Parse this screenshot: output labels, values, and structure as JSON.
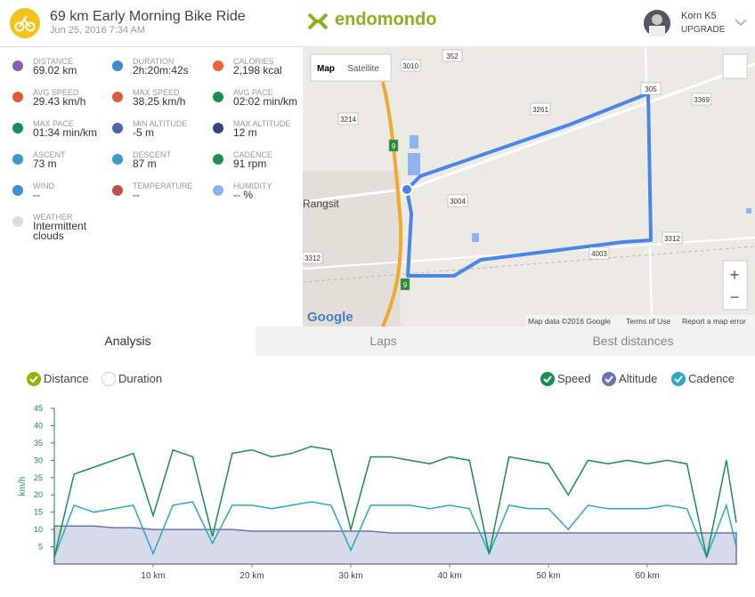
{
  "header": {
    "title": "69 km Early Morning Bike Ride",
    "date": "Jun 25, 2016 7:34 AM",
    "logo": "endomondo",
    "user": "Korn K5",
    "upgrade": "UPGRADE"
  },
  "stats": [
    {
      "label": "DISTANCE",
      "value": "69.02 km"
    },
    {
      "label": "DURATION",
      "value": "2h:20m:42s"
    },
    {
      "label": "CALORIES",
      "value": "2,198 kcal"
    },
    {
      "label": "AVG SPEED",
      "value": "29.43 km/h"
    },
    {
      "label": "MAX SPEED",
      "value": "38.25 km/h"
    },
    {
      "label": "AVG PACE",
      "value": "02:02 min/km"
    },
    {
      "label": "MAX PACE",
      "value": "01:34 min/km"
    },
    {
      "label": "MIN ALTITUDE",
      "value": "-5 m"
    },
    {
      "label": "MAX ALTITUDE",
      "value": "12 m"
    },
    {
      "label": "ASCENT",
      "value": "73 m"
    },
    {
      "label": "DESCENT",
      "value": "87 m"
    },
    {
      "label": "CADENCE",
      "value": "91 rpm"
    },
    {
      "label": "WIND",
      "value": "--"
    },
    {
      "label": "TEMPERATURE",
      "value": "--"
    },
    {
      "label": "HUMIDITY",
      "value": "-- %"
    },
    {
      "label": "WEATHER",
      "value": "Intermittent clouds"
    }
  ],
  "map": {
    "buttons": [
      "Map",
      "Satellite"
    ],
    "place": "Rangsit",
    "brand": "Google",
    "footer": [
      "Map data ©2016 Google",
      "Terms of Use",
      "Report a map error"
    ],
    "zoom": [
      "+",
      "−"
    ],
    "labels": [
      "3010",
      "352",
      "3214",
      "3261",
      "305",
      "3369",
      "3004",
      "3312",
      "4003",
      "3312",
      "9",
      "9"
    ]
  },
  "tabs": [
    "Analysis",
    "Laps",
    "Best distances"
  ],
  "axis_options": [
    "Distance",
    "Duration"
  ],
  "chart_data": {
    "type": "line",
    "y_label": "km/h",
    "x": [
      0,
      2,
      4,
      6,
      8,
      10,
      12,
      14,
      16,
      18,
      20,
      22,
      24,
      26,
      28,
      30,
      32,
      34,
      36,
      38,
      40,
      42,
      44,
      46,
      48,
      50,
      52,
      54,
      56,
      58,
      60,
      62,
      64,
      66,
      68,
      69
    ],
    "series": [
      {
        "name": "Speed",
        "color": "#1a8f4f",
        "values": [
          2,
          26,
          28,
          30,
          32,
          14,
          33,
          31,
          8,
          32,
          33,
          31,
          32,
          34,
          33,
          10,
          31,
          31,
          30,
          29,
          31,
          30,
          3,
          31,
          30,
          29,
          20,
          30,
          29,
          30,
          29,
          30,
          29,
          2,
          30,
          12
        ]
      },
      {
        "name": "Altitude",
        "color": "#6b72b5",
        "values": [
          11,
          11,
          11,
          10.5,
          10.5,
          10,
          10,
          10,
          10,
          10,
          9.5,
          9.5,
          9.5,
          9.5,
          9.5,
          9.5,
          9.5,
          9,
          9,
          9,
          9,
          9,
          9,
          9,
          9,
          9,
          9,
          9,
          9,
          9,
          9,
          9,
          9,
          9,
          9,
          9
        ]
      },
      {
        "name": "Cadence",
        "color": "#2aa9c8",
        "values": [
          2,
          17,
          15,
          16,
          17,
          3,
          17,
          18,
          6,
          17,
          17,
          16,
          17,
          18,
          17,
          4,
          17,
          17,
          17,
          16,
          17,
          16,
          3,
          17,
          16,
          16,
          10,
          17,
          16,
          16,
          16,
          17,
          16,
          2,
          17,
          5
        ]
      }
    ],
    "xlim": [
      0,
      69
    ],
    "ylim": [
      0,
      45
    ],
    "xticks": [
      {
        "value": 10,
        "label": "10 km"
      },
      {
        "value": 20,
        "label": "20 km"
      },
      {
        "value": 30,
        "label": "30 km"
      },
      {
        "value": 40,
        "label": "40 km"
      },
      {
        "value": 50,
        "label": "50 km"
      },
      {
        "value": 60,
        "label": "60 km"
      }
    ],
    "yticks": [
      5,
      10,
      15,
      20,
      25,
      30,
      35,
      40,
      45
    ],
    "grid": false
  }
}
